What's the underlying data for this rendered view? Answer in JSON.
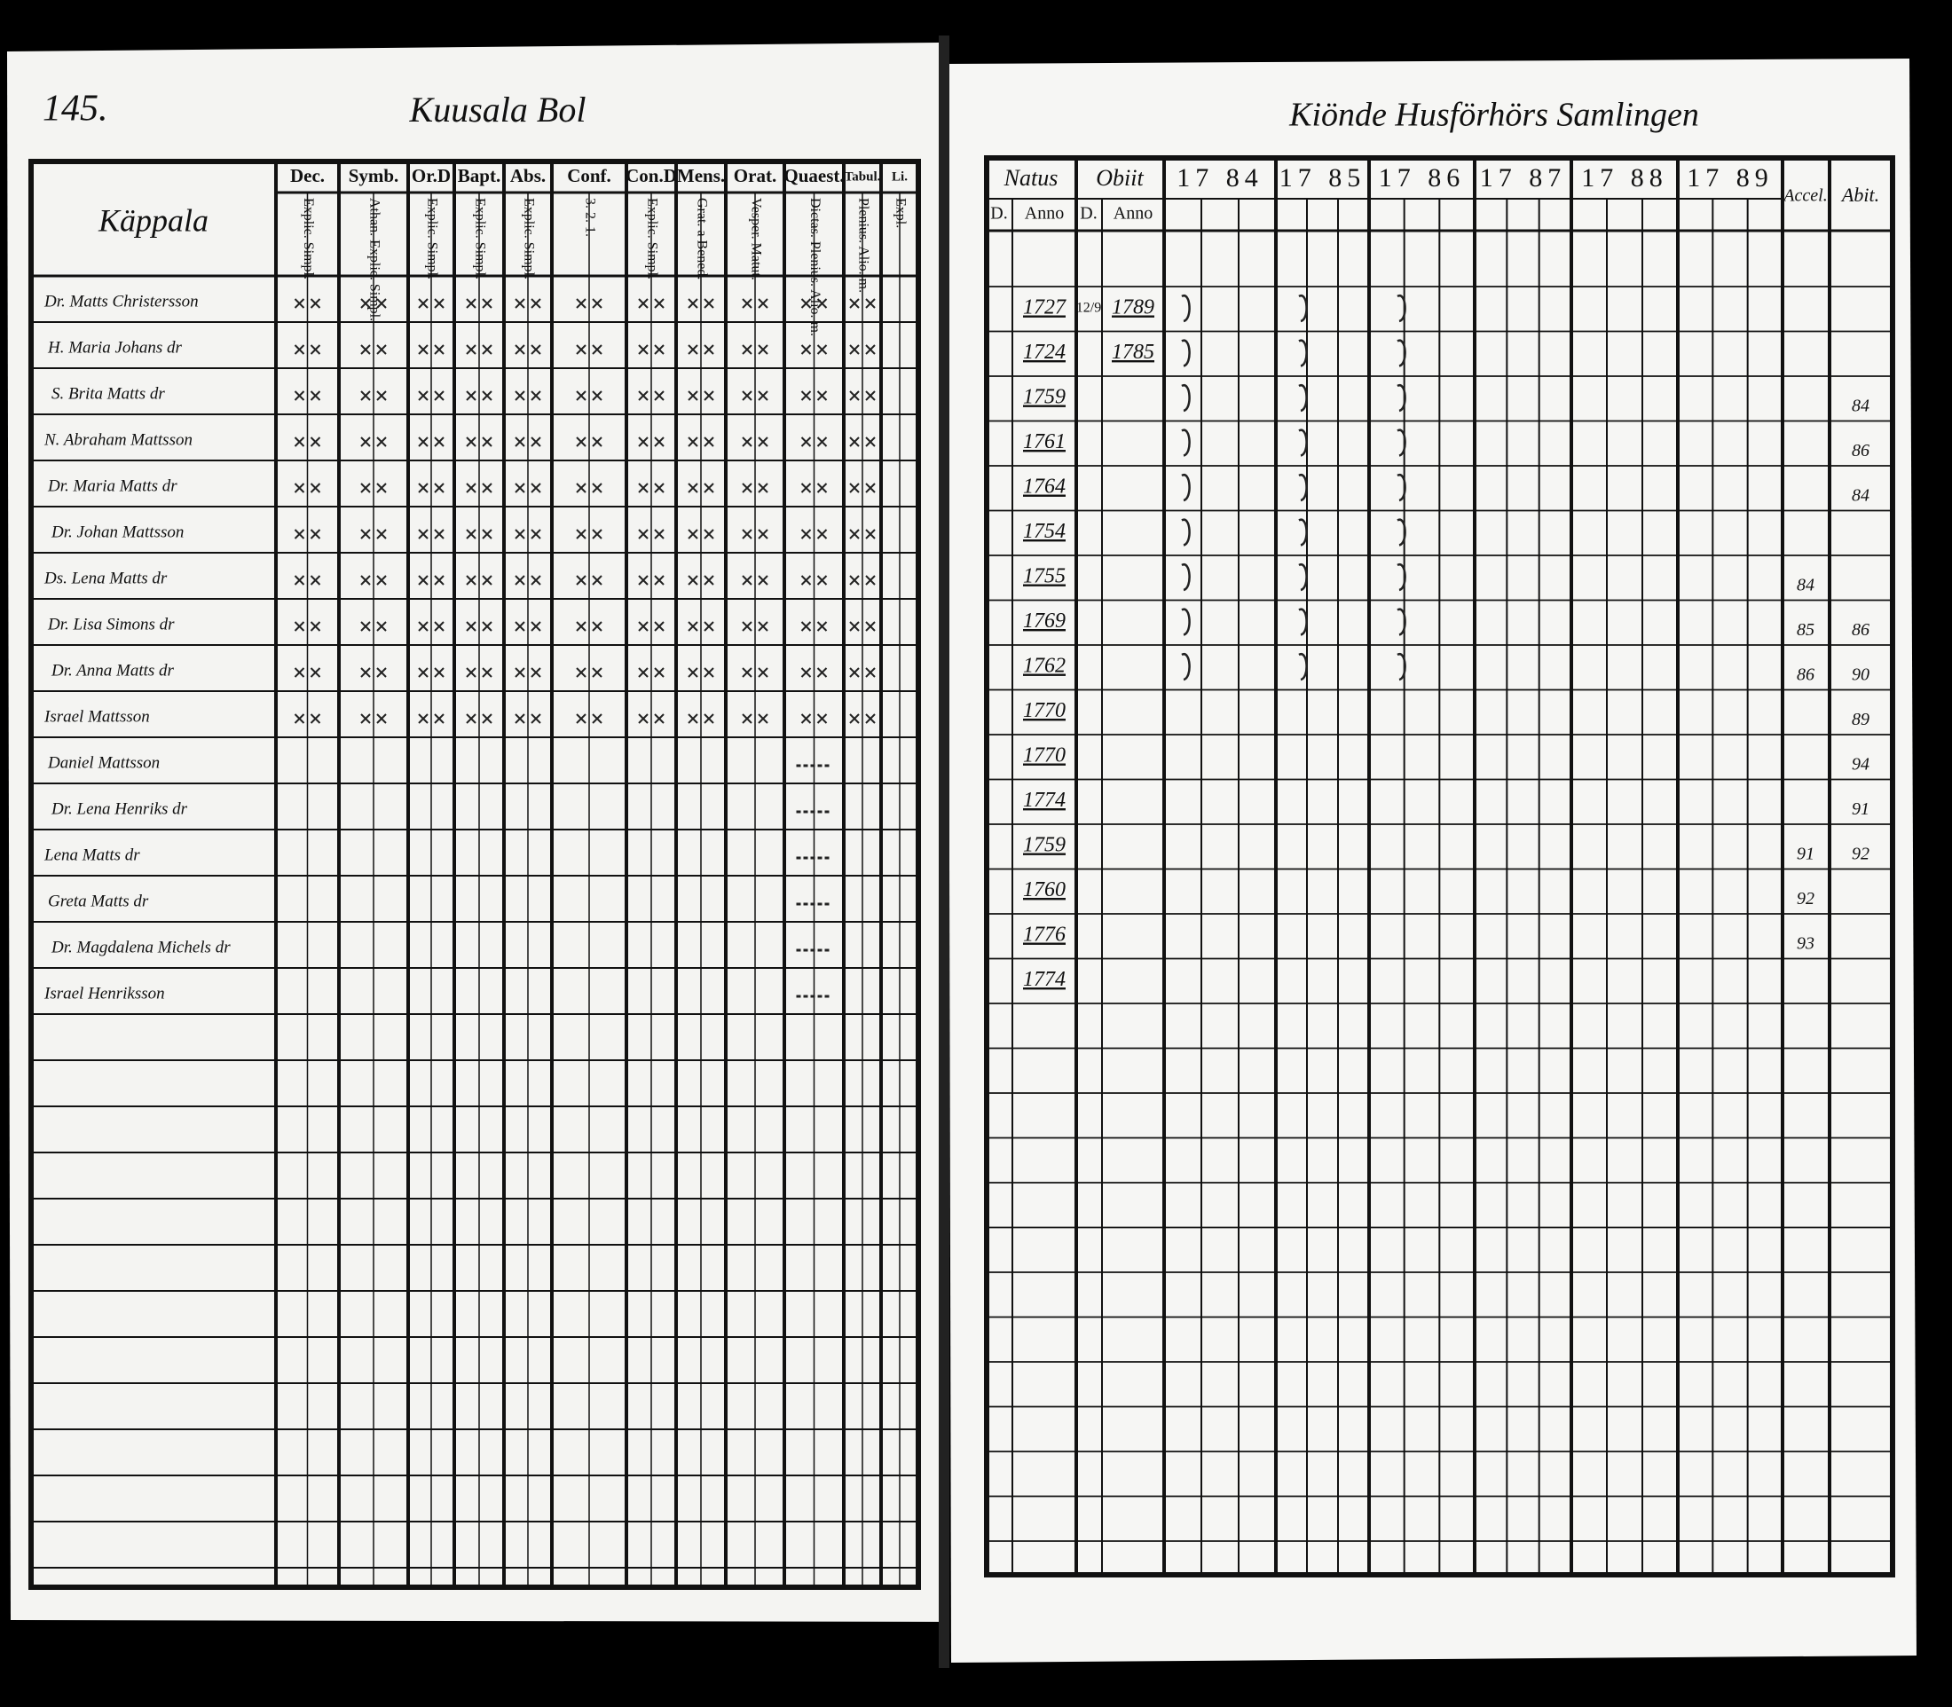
{
  "left_page": {
    "page_number": "145.",
    "title": "Kuusala Bol",
    "table": {
      "name_header": "Käppala",
      "columns": [
        {
          "header": "Dec.",
          "sub": "Explic. Simpl."
        },
        {
          "header": "Symb.",
          "sub": "Athan. Explic. Simpl."
        },
        {
          "header": "Or.D",
          "sub": "Explic. Simpl."
        },
        {
          "header": "Bapt.",
          "sub": "Explic. Simpl."
        },
        {
          "header": "Abs.",
          "sub": "Explic. Simpl."
        },
        {
          "header": "Conf.",
          "sub": "3. 2. 1."
        },
        {
          "header": "Con.D",
          "sub": "Explic. Simpl."
        },
        {
          "header": "Mens.",
          "sub": "Grat. a Bened."
        },
        {
          "header": "Orat.",
          "sub": "Vesper. Matut."
        },
        {
          "header": "Quaest.",
          "sub": "Dictas. Plenius. Alio. m."
        },
        {
          "header": "Tabul.",
          "sub": "Plenius. Alio. m."
        },
        {
          "header": "Li.",
          "sub": "Expl."
        }
      ],
      "rows": [
        "Dr. Matts Christersson",
        "H. Maria Johans dr",
        "S. Brita Matts dr",
        "N. Abraham Mattsson",
        "Dr. Maria Matts dr",
        "Dr. Johan Mattsson",
        "Ds. Lena Matts dr",
        "Dr. Lisa Simons dr",
        "Dr. Anna Matts dr",
        "Israel Mattsson",
        "Daniel Mattsson",
        "Dr. Lena Henriks dr",
        "Lena Matts dr",
        "Greta Matts dr",
        "Dr. Magdalena Michels dr",
        "Israel Henriksson"
      ]
    }
  },
  "right_page": {
    "title": "Kiönde Husförhörs Samlingen",
    "table": {
      "natus": "Natus",
      "obiit": "Obiit",
      "day": "D.",
      "anno": "Anno",
      "years": [
        "17 84",
        "17 85",
        "17 86",
        "17 87",
        "17 88",
        "17 89"
      ],
      "accel": "Accel.",
      "abit": "Abit.",
      "rows": [
        {
          "natus": "1727",
          "obiit_day": "12/9",
          "obiit_year": "1789"
        },
        {
          "natus": "1724",
          "obiit_year": "1785"
        },
        {
          "natus": "1759",
          "abit": "84"
        },
        {
          "natus": "1761",
          "abit": "86"
        },
        {
          "natus": "1764",
          "abit": "84"
        },
        {
          "natus": "1754"
        },
        {
          "natus": "1755",
          "accel": "84"
        },
        {
          "natus": "1769",
          "accel": "85",
          "abit": "86"
        },
        {
          "natus": "1762",
          "accel": "86",
          "abit": "90"
        },
        {
          "natus": "1770",
          "abit": "89"
        },
        {
          "natus": "1770",
          "abit": "94"
        },
        {
          "natus": "1774",
          "abit": "91"
        },
        {
          "natus": "1759",
          "accel": "91",
          "abit": "92"
        },
        {
          "natus": "1760",
          "accel": "92"
        },
        {
          "natus": "1776",
          "accel": "93"
        },
        {
          "natus": "1774"
        }
      ]
    }
  }
}
